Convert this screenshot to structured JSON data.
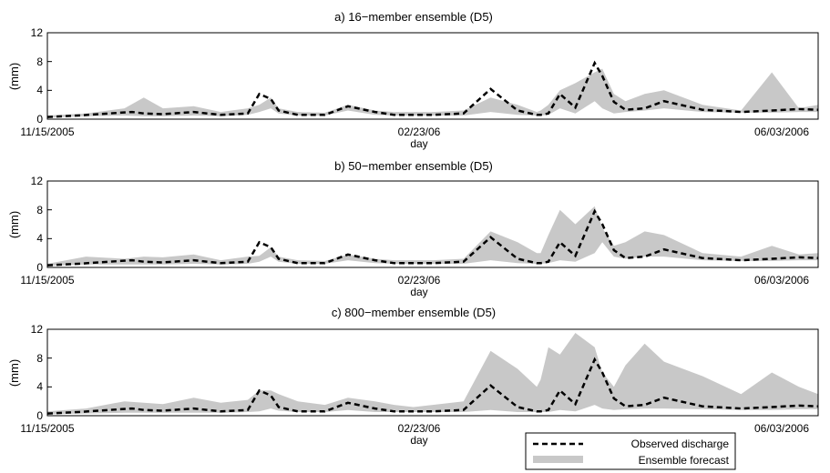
{
  "chart_data": [
    {
      "type": "area",
      "title": "a) 16−member ensemble (D5)",
      "xlabel": "day",
      "ylabel": "(mm)",
      "x_tick_labels": [
        "11/15/2005",
        "02/23/06",
        "06/03/2006"
      ],
      "y_ticks": [
        0,
        4,
        8,
        12
      ],
      "ylim": [
        0,
        12
      ],
      "xlim": [
        0,
        200
      ],
      "grid": false,
      "series": [
        {
          "name": "Observed discharge",
          "style": "dashed",
          "color": "#000000",
          "x": [
            0,
            8,
            16,
            22,
            25,
            30,
            38,
            45,
            52,
            55,
            58,
            60,
            65,
            72,
            78,
            85,
            90,
            95,
            100,
            108,
            115,
            122,
            127,
            128,
            130,
            133,
            137,
            142,
            144,
            147,
            150,
            155,
            160,
            170,
            180,
            188,
            195,
            200
          ],
          "y": [
            0.3,
            0.5,
            0.8,
            1.0,
            0.8,
            0.7,
            1.0,
            0.6,
            0.8,
            3.5,
            2.8,
            1.2,
            0.6,
            0.6,
            1.8,
            1.0,
            0.6,
            0.6,
            0.6,
            0.8,
            4.2,
            1.2,
            0.6,
            0.6,
            0.8,
            3.5,
            1.6,
            7.8,
            6.0,
            2.4,
            1.3,
            1.5,
            2.5,
            1.3,
            1.0,
            1.2,
            1.4,
            1.3
          ]
        },
        {
          "name": "Ensemble forecast",
          "style": "band",
          "color": "#c8c8c8",
          "x": [
            0,
            10,
            20,
            25,
            30,
            38,
            45,
            52,
            55,
            58,
            60,
            65,
            72,
            78,
            85,
            90,
            95,
            100,
            108,
            115,
            122,
            127,
            128,
            130,
            133,
            137,
            142,
            144,
            147,
            150,
            155,
            160,
            170,
            180,
            188,
            195,
            200
          ],
          "low": [
            0.2,
            0.4,
            0.5,
            0.4,
            0.4,
            0.5,
            0.4,
            0.6,
            1.0,
            1.5,
            0.8,
            0.5,
            0.5,
            1.2,
            0.6,
            0.5,
            0.5,
            0.5,
            0.5,
            1.0,
            0.6,
            0.5,
            0.5,
            0.6,
            1.5,
            0.8,
            2.5,
            1.5,
            0.8,
            1.0,
            1.2,
            1.5,
            1.0,
            0.9,
            0.9,
            1.0,
            1.0
          ],
          "high": [
            0.5,
            0.8,
            1.5,
            3.0,
            1.5,
            1.8,
            1.0,
            1.5,
            2.0,
            3.0,
            1.5,
            1.0,
            0.9,
            2.0,
            1.2,
            1.0,
            1.0,
            1.0,
            1.2,
            3.0,
            2.0,
            1.0,
            1.2,
            2.0,
            4.0,
            5.0,
            6.5,
            7.0,
            3.5,
            2.5,
            3.5,
            4.0,
            2.0,
            1.2,
            6.5,
            1.5,
            2.0
          ]
        }
      ]
    },
    {
      "type": "area",
      "title": "b) 50−member ensemble (D5)",
      "xlabel": "day",
      "ylabel": "(mm)",
      "x_tick_labels": [
        "11/15/2005",
        "02/23/06",
        "06/03/2006"
      ],
      "y_ticks": [
        0,
        4,
        8,
        12
      ],
      "ylim": [
        0,
        12
      ],
      "xlim": [
        0,
        200
      ],
      "grid": false,
      "series": [
        {
          "name": "Observed discharge",
          "style": "dashed",
          "color": "#000000",
          "x": [
            0,
            8,
            16,
            22,
            25,
            30,
            38,
            45,
            52,
            55,
            58,
            60,
            65,
            72,
            78,
            85,
            90,
            95,
            100,
            108,
            115,
            122,
            127,
            128,
            130,
            133,
            137,
            142,
            144,
            147,
            150,
            155,
            160,
            170,
            180,
            188,
            195,
            200
          ],
          "y": [
            0.3,
            0.5,
            0.8,
            1.0,
            0.8,
            0.7,
            1.0,
            0.6,
            0.8,
            3.5,
            2.8,
            1.2,
            0.6,
            0.6,
            1.8,
            1.0,
            0.6,
            0.6,
            0.6,
            0.8,
            4.2,
            1.2,
            0.6,
            0.6,
            0.8,
            3.5,
            1.6,
            7.8,
            6.0,
            2.4,
            1.3,
            1.5,
            2.5,
            1.3,
            1.0,
            1.2,
            1.4,
            1.3
          ]
        },
        {
          "name": "Ensemble forecast",
          "style": "band",
          "color": "#c8c8c8",
          "x": [
            0,
            10,
            20,
            25,
            30,
            38,
            45,
            52,
            55,
            58,
            60,
            65,
            72,
            78,
            85,
            90,
            95,
            100,
            108,
            115,
            122,
            127,
            128,
            130,
            133,
            137,
            142,
            144,
            147,
            150,
            155,
            160,
            170,
            180,
            188,
            195,
            200
          ],
          "low": [
            0.2,
            0.4,
            0.4,
            0.4,
            0.4,
            0.5,
            0.4,
            0.5,
            0.8,
            1.5,
            0.8,
            0.5,
            0.5,
            1.0,
            0.6,
            0.5,
            0.5,
            0.5,
            0.5,
            1.0,
            0.6,
            0.5,
            0.5,
            0.6,
            1.0,
            0.8,
            2.0,
            3.5,
            1.5,
            1.2,
            1.5,
            1.5,
            1.0,
            0.9,
            0.9,
            1.0,
            1.0
          ],
          "high": [
            0.5,
            1.5,
            1.2,
            1.5,
            1.4,
            1.8,
            1.0,
            1.5,
            1.6,
            2.8,
            1.5,
            1.0,
            0.9,
            1.8,
            1.2,
            1.0,
            1.0,
            1.0,
            1.2,
            5.0,
            3.5,
            2.0,
            2.0,
            4.5,
            8.0,
            6.0,
            8.5,
            5.5,
            3.0,
            3.5,
            5.0,
            4.5,
            2.0,
            1.5,
            3.0,
            1.8,
            2.0
          ]
        }
      ]
    },
    {
      "type": "area",
      "title": "c) 800−member ensemble (D5)",
      "xlabel": "day",
      "ylabel": "(mm)",
      "x_tick_labels": [
        "11/15/2005",
        "02/23/06",
        "06/03/2006"
      ],
      "y_ticks": [
        0,
        4,
        8,
        12
      ],
      "ylim": [
        0,
        12
      ],
      "xlim": [
        0,
        200
      ],
      "grid": false,
      "legend": {
        "position": "bottom-right",
        "entries": [
          "Observed discharge",
          "Ensemble forecast"
        ]
      },
      "series": [
        {
          "name": "Observed discharge",
          "style": "dashed",
          "color": "#000000",
          "x": [
            0,
            8,
            16,
            22,
            25,
            30,
            38,
            45,
            52,
            55,
            58,
            60,
            65,
            72,
            78,
            85,
            90,
            95,
            100,
            108,
            115,
            122,
            127,
            128,
            130,
            133,
            137,
            142,
            144,
            147,
            150,
            155,
            160,
            170,
            180,
            188,
            195,
            200
          ],
          "y": [
            0.3,
            0.5,
            0.8,
            1.0,
            0.8,
            0.7,
            1.0,
            0.6,
            0.8,
            3.5,
            2.8,
            1.2,
            0.6,
            0.6,
            1.8,
            1.0,
            0.6,
            0.6,
            0.6,
            0.8,
            4.2,
            1.2,
            0.6,
            0.6,
            0.8,
            3.5,
            1.6,
            7.8,
            6.0,
            2.4,
            1.3,
            1.5,
            2.5,
            1.3,
            1.0,
            1.2,
            1.4,
            1.3
          ]
        },
        {
          "name": "Ensemble forecast",
          "style": "band",
          "color": "#c8c8c8",
          "x": [
            0,
            10,
            20,
            25,
            30,
            38,
            45,
            52,
            55,
            58,
            60,
            65,
            72,
            78,
            85,
            90,
            95,
            100,
            108,
            115,
            122,
            127,
            128,
            130,
            133,
            137,
            142,
            144,
            147,
            150,
            155,
            160,
            170,
            180,
            188,
            195,
            200
          ],
          "low": [
            0.2,
            0.3,
            0.4,
            0.4,
            0.4,
            0.4,
            0.4,
            0.5,
            0.6,
            1.0,
            0.7,
            0.5,
            0.5,
            0.8,
            0.5,
            0.5,
            0.5,
            0.5,
            0.5,
            0.8,
            0.5,
            0.5,
            0.5,
            0.5,
            0.8,
            0.6,
            1.5,
            1.0,
            0.8,
            0.9,
            1.0,
            1.0,
            0.9,
            0.8,
            0.8,
            0.9,
            0.9
          ],
          "high": [
            0.6,
            1.0,
            2.0,
            1.8,
            1.6,
            2.5,
            1.8,
            2.2,
            3.5,
            3.5,
            3.0,
            2.0,
            1.5,
            2.5,
            2.0,
            1.5,
            1.2,
            1.5,
            2.0,
            9.0,
            6.5,
            4.0,
            5.0,
            9.5,
            8.5,
            11.5,
            9.5,
            6.0,
            4.0,
            7.0,
            10.0,
            7.5,
            5.5,
            3.0,
            6.0,
            4.0,
            3.0
          ]
        }
      ]
    }
  ]
}
